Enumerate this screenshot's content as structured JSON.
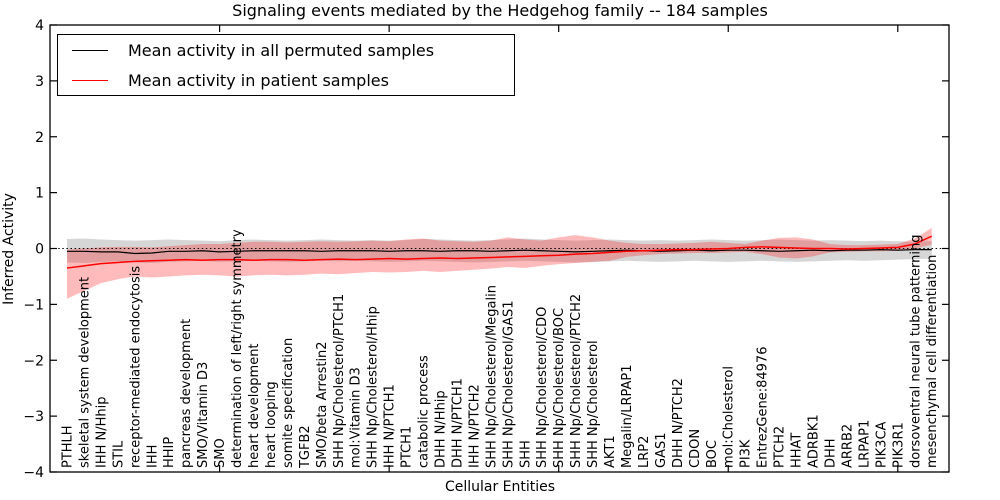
{
  "title": "Signaling events mediated by the Hedgehog family -- 184 samples",
  "legend": {
    "position": "upper left",
    "entries": [
      {
        "label": "Mean activity in all permuted samples",
        "color": "#000000"
      },
      {
        "label": "Mean activity in patient samples",
        "color": "#ff0000"
      }
    ]
  },
  "chart_data": {
    "type": "line",
    "title": "Signaling events mediated by the Hedgehog family -- 184 samples",
    "xlabel": "Cellular Entities",
    "ylabel": "Inferred Activity",
    "ylim": [
      -4,
      4
    ],
    "ytick_values": [
      -4,
      -3,
      -2,
      -1,
      0,
      1,
      2,
      3,
      4
    ],
    "ytick_labels": [
      "−4",
      "−3",
      "−2",
      "−1",
      "0",
      "1",
      "2",
      "3",
      "4"
    ],
    "xtick_index_positions": [
      9,
      19,
      29,
      39,
      49
    ],
    "grid": false,
    "zero_reference_line": {
      "y": 0,
      "style": "dotted",
      "color": "#000000"
    },
    "categories": [
      "PTHLH",
      "skeletal system development",
      "IHH N/Hhip",
      "STIL",
      "receptor-mediated endocytosis",
      "IHH",
      "HHIP",
      "pancreas development",
      "SMO/Vitamin D3",
      "SMO",
      "determination of left/right symmetry",
      "heart development",
      "heart looping",
      "somite specification",
      "TGFB2",
      "SMO/beta Arrestin2",
      "SHH Np/Cholesterol/PTCH1",
      "mol:Vitamin D3",
      "SHH Np/Cholesterol/Hhip",
      "IHH N/PTCH1",
      "PTCH1",
      "catabolic process",
      "DHH N/Hhip",
      "DHH N/PTCH1",
      "IHH N/PTCH2",
      "SHH Np/Cholesterol/Megalin",
      "SHH Np/Cholesterol/GAS1",
      "SHH",
      "SHH Np/Cholesterol/CDO",
      "SHH Np/Cholesterol/BOC",
      "SHH Np/Cholesterol/PTCH2",
      "SHH Np/Cholesterol",
      "AKT1",
      "Megalin/LRPAP1",
      "LRP2",
      "GAS1",
      "DHH N/PTCH2",
      "CDON",
      "BOC",
      "mol:Cholesterol",
      "PI3K",
      "EntrezGene:84976",
      "PTCH2",
      "HHAT",
      "ADRBK1",
      "DHH",
      "ARRB2",
      "LRPAP1",
      "PIK3CA",
      "PIK3R1",
      "dorsoventral neural tube patterning",
      "mesenchymal cell differentiation"
    ],
    "series": [
      {
        "name": "Mean activity in all permuted samples",
        "color": "#000000",
        "line_width": 1.2,
        "values": [
          -0.05,
          -0.05,
          -0.06,
          -0.06,
          -0.09,
          -0.08,
          -0.05,
          -0.05,
          -0.04,
          -0.06,
          -0.05,
          -0.04,
          -0.04,
          -0.04,
          -0.04,
          -0.05,
          -0.04,
          -0.04,
          -0.04,
          -0.05,
          -0.04,
          -0.04,
          -0.05,
          -0.04,
          -0.04,
          -0.05,
          -0.04,
          -0.03,
          -0.04,
          -0.05,
          -0.06,
          -0.05,
          -0.04,
          -0.03,
          -0.04,
          -0.05,
          -0.04,
          -0.03,
          -0.04,
          -0.03,
          -0.03,
          -0.04,
          -0.05,
          -0.04,
          -0.03,
          -0.04,
          -0.03,
          -0.03,
          -0.02,
          -0.03,
          -0.02,
          -0.02
        ]
      },
      {
        "name": "Mean activity in patient samples",
        "color": "#ff0000",
        "line_width": 1.5,
        "values": [
          -0.35,
          -0.31,
          -0.27,
          -0.25,
          -0.23,
          -0.22,
          -0.21,
          -0.2,
          -0.21,
          -0.2,
          -0.2,
          -0.21,
          -0.2,
          -0.2,
          -0.21,
          -0.2,
          -0.19,
          -0.2,
          -0.19,
          -0.18,
          -0.19,
          -0.18,
          -0.17,
          -0.18,
          -0.17,
          -0.16,
          -0.15,
          -0.14,
          -0.13,
          -0.12,
          -0.1,
          -0.09,
          -0.07,
          -0.05,
          -0.04,
          -0.03,
          -0.02,
          -0.02,
          -0.01,
          0.0,
          0.02,
          0.03,
          0.02,
          0.01,
          0.0,
          0.0,
          -0.01,
          0.0,
          0.01,
          0.02,
          0.08,
          0.22
        ]
      }
    ],
    "bands": [
      {
        "name": "permuted-samples-range",
        "fill": "rgba(128,128,128,0.32)",
        "upper": [
          0.17,
          0.18,
          0.16,
          0.15,
          0.14,
          0.15,
          0.16,
          0.15,
          0.14,
          0.13,
          0.15,
          0.16,
          0.15,
          0.14,
          0.15,
          0.16,
          0.15,
          0.14,
          0.15,
          0.14,
          0.15,
          0.17,
          0.16,
          0.15,
          0.14,
          0.15,
          0.16,
          0.18,
          0.16,
          0.15,
          0.14,
          0.15,
          0.16,
          0.15,
          0.14,
          0.15,
          0.14,
          0.15,
          0.16,
          0.15,
          0.14,
          0.15,
          0.16,
          0.15,
          0.14,
          0.15,
          0.14,
          0.13,
          0.14,
          0.13,
          0.12,
          0.13
        ],
        "lower": [
          -0.25,
          -0.26,
          -0.24,
          -0.23,
          -0.25,
          -0.26,
          -0.24,
          -0.23,
          -0.22,
          -0.24,
          -0.23,
          -0.22,
          -0.23,
          -0.24,
          -0.23,
          -0.22,
          -0.23,
          -0.22,
          -0.23,
          -0.24,
          -0.23,
          -0.22,
          -0.23,
          -0.24,
          -0.25,
          -0.24,
          -0.23,
          -0.22,
          -0.23,
          -0.24,
          -0.25,
          -0.24,
          -0.23,
          -0.22,
          -0.23,
          -0.24,
          -0.23,
          -0.22,
          -0.23,
          -0.24,
          -0.23,
          -0.22,
          -0.23,
          -0.24,
          -0.23,
          -0.22,
          -0.21,
          -0.22,
          -0.21,
          -0.2,
          -0.19,
          -0.18
        ]
      },
      {
        "name": "patient-samples-range",
        "fill": "rgba(255,30,30,0.30)",
        "upper": [
          -0.02,
          0.0,
          0.02,
          0.03,
          0.03,
          0.02,
          0.04,
          0.06,
          0.08,
          0.08,
          0.1,
          0.12,
          0.12,
          0.11,
          0.12,
          0.13,
          0.12,
          0.13,
          0.14,
          0.13,
          0.16,
          0.18,
          0.14,
          0.13,
          0.12,
          0.14,
          0.2,
          0.16,
          0.14,
          0.2,
          0.24,
          0.2,
          0.14,
          0.1,
          0.08,
          0.08,
          0.09,
          0.1,
          0.12,
          0.1,
          0.08,
          0.14,
          0.19,
          0.2,
          0.16,
          0.08,
          0.06,
          0.06,
          0.07,
          0.08,
          0.18,
          0.37
        ],
        "lower": [
          -0.9,
          -0.76,
          -0.62,
          -0.55,
          -0.5,
          -0.52,
          -0.5,
          -0.48,
          -0.47,
          -0.48,
          -0.5,
          -0.48,
          -0.47,
          -0.48,
          -0.47,
          -0.45,
          -0.46,
          -0.44,
          -0.42,
          -0.43,
          -0.42,
          -0.4,
          -0.42,
          -0.4,
          -0.38,
          -0.36,
          -0.33,
          -0.35,
          -0.31,
          -0.28,
          -0.26,
          -0.24,
          -0.22,
          -0.15,
          -0.12,
          -0.1,
          -0.09,
          -0.08,
          -0.08,
          -0.07,
          -0.06,
          -0.1,
          -0.16,
          -0.18,
          -0.14,
          -0.07,
          -0.06,
          -0.05,
          -0.05,
          -0.04,
          0.0,
          0.07
        ]
      }
    ]
  }
}
